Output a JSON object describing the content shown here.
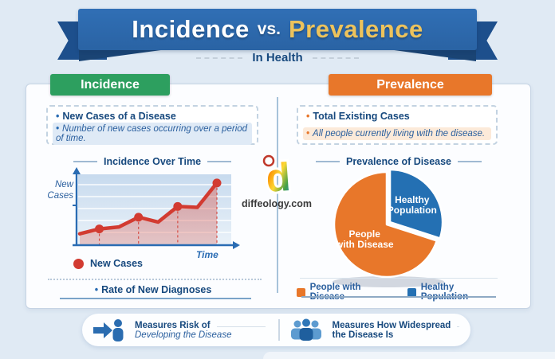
{
  "banner": {
    "title_left": "Incidence",
    "title_vs": "vs.",
    "title_right": "Prevalence",
    "subtitle": "In Health"
  },
  "colors": {
    "ribbon_blue": "#2a63a4",
    "ribbon_dark_blue": "#1d4f8c",
    "gold": "#edc35c",
    "incidence_green": "#2d9f5f",
    "prevalence_orange": "#e8772a",
    "heading_blue": "#17497e",
    "body_blue": "#2a5f9e",
    "line_red": "#d23b31",
    "pie_blue": "#2470b3",
    "background": "#e0eaf4"
  },
  "incidence": {
    "header": "Incidence",
    "point_title": "New Cases of a Disease",
    "point_desc": "Number of new cases occurring over a period of time.",
    "footer_note": "Rate of New Diagnoses"
  },
  "prevalence": {
    "header": "Prevalence",
    "point_title": "Total Existing Cases",
    "point_desc": "All people currently living with the disease."
  },
  "watermark": {
    "text": "diffeology.com"
  },
  "bottom_left": {
    "line1": "Measures Risk of",
    "line2": "Developing the Disease"
  },
  "bottom_right": {
    "line1": "Measures How Widespread",
    "line2": "the Disease Is"
  },
  "chart_data": [
    {
      "type": "area",
      "title": "Incidence Over Time",
      "xlabel": "Time",
      "ylabel": "New Cases",
      "series_name": "New Cases",
      "x": [
        1,
        2,
        3,
        4,
        5,
        6,
        7,
        8
      ],
      "y": [
        1.0,
        1.5,
        1.7,
        2.7,
        2.2,
        3.8,
        3.7,
        6.2
      ],
      "marker_indices": [
        1,
        3,
        5,
        7
      ],
      "ylim": [
        0,
        7
      ],
      "grid": true,
      "line_color": "#d23b31",
      "axis_color": "#2a6cb3",
      "legend_position": "bottom-left"
    },
    {
      "type": "pie",
      "title": "Prevalence of Disease",
      "slices": [
        {
          "label": "Healthy Population",
          "value": 30,
          "color": "#2470b3",
          "exploded": true
        },
        {
          "label": "People with Disease",
          "value": 70,
          "color": "#e8772a",
          "exploded": false
        }
      ],
      "start_angle_deg": -90,
      "legend_order": [
        1,
        0
      ],
      "legend_position": "bottom"
    }
  ]
}
